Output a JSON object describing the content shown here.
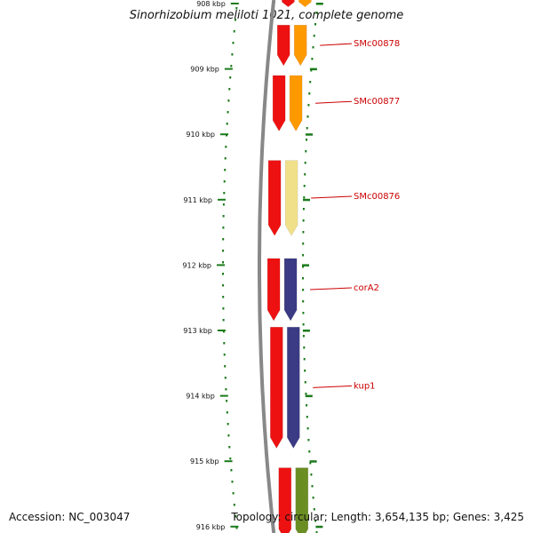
{
  "title": "Sinorhizobium meliloti 1021, complete genome",
  "footer": {
    "accession": "Accession: NC_003047",
    "topology": "Topology: circular; Length: 3,654,135 bp; Genes: 3,425"
  },
  "axis": {
    "ticks": [
      {
        "kbp": 908,
        "label": "908 kbp"
      },
      {
        "kbp": 909,
        "label": "909 kbp"
      },
      {
        "kbp": 910,
        "label": "910 kbp"
      },
      {
        "kbp": 911,
        "label": "911 kbp"
      },
      {
        "kbp": 912,
        "label": "912 kbp"
      },
      {
        "kbp": 913,
        "label": "913 kbp"
      },
      {
        "kbp": 914,
        "label": "914 kbp"
      },
      {
        "kbp": 915,
        "label": "915 kbp"
      },
      {
        "kbp": 916,
        "label": "916 kbp"
      }
    ]
  },
  "colors": {
    "cds": "#ee1111",
    "backbone": "#888888",
    "tick": "#1a7a1a",
    "label": "#cc0000"
  },
  "genes": [
    {
      "name": "",
      "start_kbp": 907.8,
      "end_kbp": 908.05,
      "color": "#ff9900"
    },
    {
      "name": "SMc00878",
      "start_kbp": 908.33,
      "end_kbp": 908.95,
      "color": "#ff9900"
    },
    {
      "name": "SMc00877",
      "start_kbp": 909.1,
      "end_kbp": 909.95,
      "color": "#ff9900"
    },
    {
      "name": "SMc00876",
      "start_kbp": 910.4,
      "end_kbp": 911.55,
      "color": "#f0e08a"
    },
    {
      "name": "corA2",
      "start_kbp": 911.9,
      "end_kbp": 912.85,
      "color": "#3b3a84"
    },
    {
      "name": "kup1",
      "start_kbp": 912.95,
      "end_kbp": 914.8,
      "color": "#3b3a84"
    },
    {
      "name": "",
      "start_kbp": 915.1,
      "end_kbp": 916.2,
      "color": "#6b8e23"
    }
  ]
}
